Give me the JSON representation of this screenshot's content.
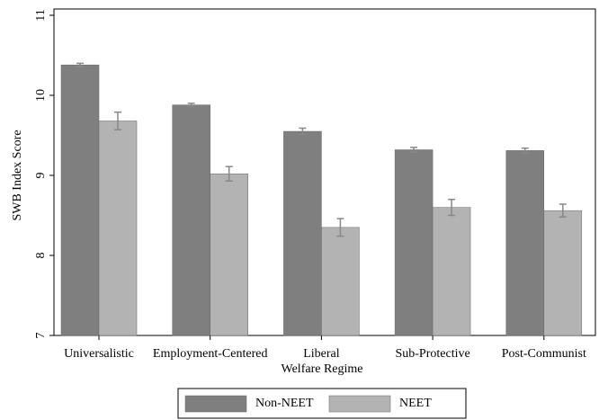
{
  "chart_data": {
    "type": "bar",
    "y_label": "SWB Index Score",
    "x_label": "Welfare Regime",
    "categories": [
      "Universalistic",
      "Employment-Centered",
      "Liberal",
      "Sub-Protective",
      "Post-Communist"
    ],
    "series": [
      {
        "name": "Non-NEET",
        "color": "#7f7f7f",
        "values": [
          10.38,
          9.88,
          9.55,
          9.32,
          9.31
        ],
        "errors": [
          0.02,
          0.02,
          0.04,
          0.03,
          0.03
        ]
      },
      {
        "name": "NEET",
        "color": "#b3b3b3",
        "values": [
          9.68,
          9.02,
          8.35,
          8.6,
          8.56
        ],
        "errors": [
          0.11,
          0.09,
          0.11,
          0.1,
          0.08
        ]
      }
    ],
    "error_color": "#888888",
    "ylim": [
      7,
      11
    ],
    "yticks": [
      7,
      8,
      9,
      10,
      11
    ],
    "legend": "bottom"
  }
}
